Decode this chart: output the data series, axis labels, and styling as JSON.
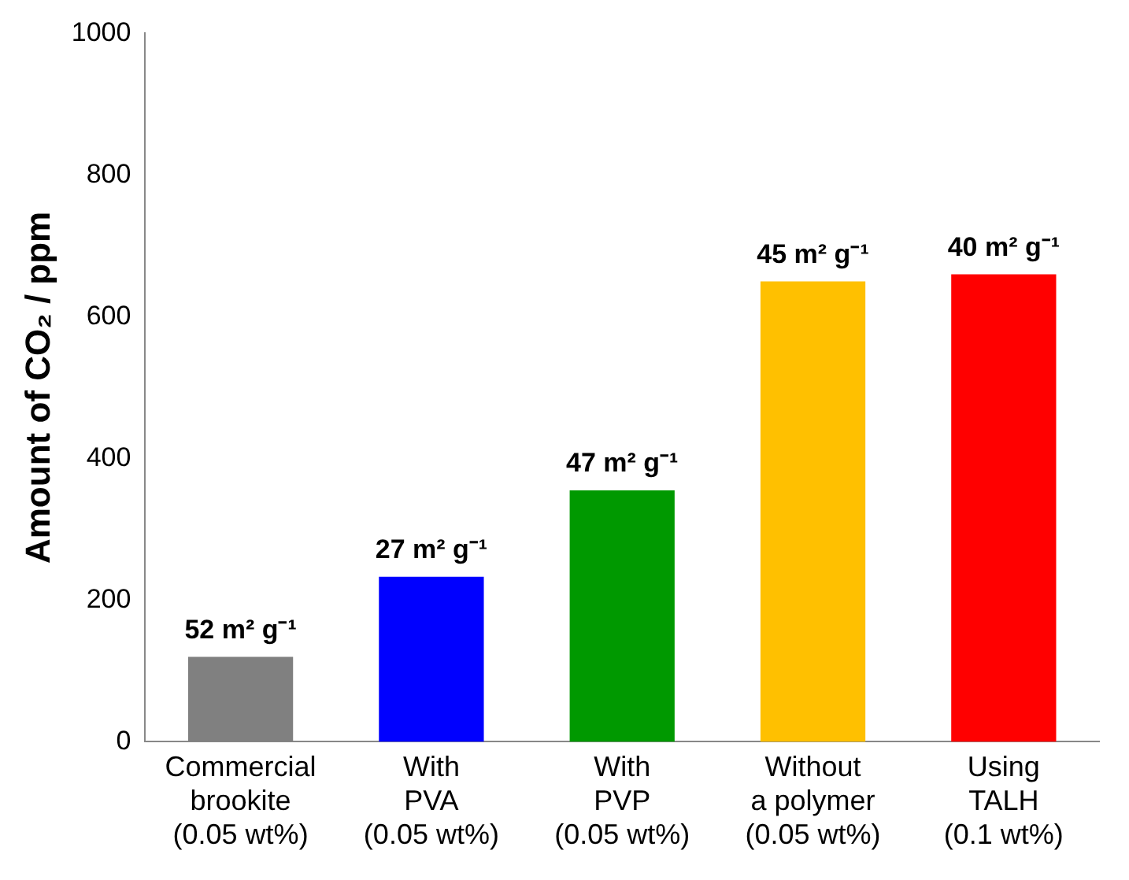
{
  "chart_data": {
    "type": "bar",
    "ylabel": "Amount of CO₂ / ppm",
    "categories": [
      "Commercial\nbrookite\n(0.05 wt%)",
      "With\nPVA\n(0.05 wt%)",
      "With\nPVP\n(0.05 wt%)",
      "Without\na polymer\n(0.05 wt%)",
      "Using\nTALH\n(0.1 wt%)"
    ],
    "values": [
      120,
      233,
      355,
      650,
      660
    ],
    "colors": [
      "#808080",
      "#0000ff",
      "#009900",
      "#ffc000",
      "#ff0000"
    ],
    "ylim": [
      0,
      1000
    ],
    "yticks": [
      0,
      200,
      400,
      600,
      800,
      1000
    ],
    "grid": false,
    "legend": false,
    "annotations": [
      {
        "text": "52 m² g⁻¹",
        "x": "Commercial\nbrookite\n(0.05 wt%)",
        "y": 120
      },
      {
        "text": "27 m² g⁻¹",
        "x": "With\nPVA\n(0.05 wt%)",
        "y": 233
      },
      {
        "text": "47 m² g⁻¹",
        "x": "With\nPVP\n(0.05 wt%)",
        "y": 355
      },
      {
        "text": "45 m² g⁻¹",
        "x": "Without\na polymer\n(0.05 wt%)",
        "y": 650
      },
      {
        "text": "40 m² g⁻¹",
        "x": "Using\nTALH\n(0.1 wt%)",
        "y": 660
      }
    ]
  }
}
